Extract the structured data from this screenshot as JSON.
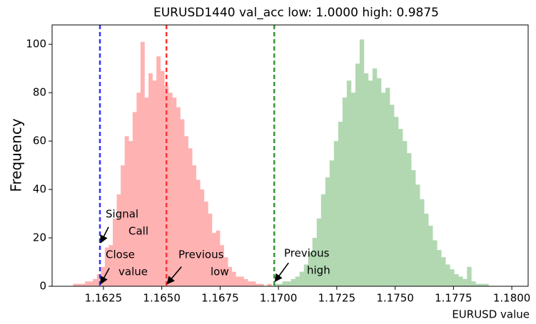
{
  "chart_data": {
    "type": "histogram",
    "title": "EURUSD1440 val_acc low: 1.0000 high: 0.9875",
    "x_label": "EURUSD value",
    "y_label": "Frequency",
    "xlim": [
      1.1603,
      1.1807
    ],
    "ylim": [
      0,
      108
    ],
    "xticks": [
      1.1625,
      {
        "value": 1.165,
        "label": "1.1650"
      },
      1.1675,
      {
        "value": 1.17,
        "label": "1.1700"
      },
      1.1725,
      {
        "value": 1.175,
        "label": "1.1750"
      },
      1.1775,
      {
        "value": 1.18,
        "label": "1.1800"
      }
    ],
    "yticks": [
      0,
      20,
      40,
      60,
      80,
      100
    ],
    "grid": false,
    "series": [
      {
        "color": "#ffb2b2",
        "bins": [
          1.1612,
          1.16137,
          1.16154,
          1.16171,
          1.16188,
          1.16205,
          1.16222,
          1.16239,
          1.16256,
          1.16273,
          1.1629,
          1.16307,
          1.16324,
          1.16341,
          1.16358,
          1.16375,
          1.16392,
          1.16409,
          1.16426,
          1.16443,
          1.1646,
          1.16477,
          1.16494,
          1.16511,
          1.16528,
          1.16545,
          1.16562,
          1.16579,
          1.16596,
          1.16613,
          1.1663,
          1.16647,
          1.16664,
          1.16681,
          1.16698,
          1.16715,
          1.16732,
          1.16749,
          1.16766,
          1.16783,
          1.168,
          1.16817,
          1.16834,
          1.16851,
          1.16868,
          1.16885,
          1.16902,
          1.16919,
          1.16936,
          1.16953,
          1.1697
        ],
        "values": [
          1,
          1,
          1,
          2,
          2,
          3,
          5,
          8,
          16,
          17,
          28,
          38,
          50,
          62,
          60,
          72,
          80,
          101,
          78,
          88,
          85,
          95,
          89,
          83,
          80,
          78,
          74,
          69,
          62,
          57,
          50,
          44,
          40,
          35,
          30,
          22,
          23,
          17,
          12,
          8,
          6,
          4,
          4,
          3,
          2,
          2,
          1,
          1,
          0,
          1
        ]
      },
      {
        "color": "#b2d8b2",
        "bins": [
          1.1698,
          1.169984,
          1.170168,
          1.170352,
          1.170536,
          1.17072,
          1.170904,
          1.171088,
          1.171272,
          1.171456,
          1.17164,
          1.171824,
          1.172008,
          1.172192,
          1.172376,
          1.17256,
          1.172744,
          1.172928,
          1.173112,
          1.173296,
          1.17348,
          1.173664,
          1.173848,
          1.174032,
          1.174216,
          1.1744,
          1.174584,
          1.174768,
          1.174952,
          1.175136,
          1.17532,
          1.175504,
          1.175688,
          1.175872,
          1.176056,
          1.17624,
          1.176424,
          1.176608,
          1.176792,
          1.176976,
          1.17716,
          1.177344,
          1.177528,
          1.177712,
          1.177896,
          1.17808,
          1.178264,
          1.178448,
          1.178632,
          1.178816,
          1.179
        ],
        "values": [
          1,
          1,
          2,
          2,
          3,
          4,
          6,
          9,
          14,
          20,
          28,
          38,
          45,
          52,
          60,
          68,
          78,
          85,
          80,
          92,
          102,
          88,
          85,
          90,
          86,
          80,
          82,
          75,
          70,
          65,
          60,
          55,
          48,
          42,
          36,
          30,
          25,
          19,
          15,
          12,
          9,
          7,
          5,
          4,
          3,
          8,
          2,
          1,
          1,
          1
        ]
      }
    ],
    "vlines": [
      {
        "value": 1.16235,
        "color": "#3333ff"
      },
      {
        "value": 1.1652,
        "color": "#ff3333"
      },
      {
        "value": 1.16982,
        "color": "#339933"
      }
    ],
    "annotations": [
      {
        "lines": [
          "Signal",
          "Call"
        ],
        "xy": [
          1.16235,
          18
        ]
      },
      {
        "lines": [
          "Close",
          "value"
        ],
        "xy": [
          1.16235,
          1
        ]
      },
      {
        "lines": [
          "Previous",
          "low"
        ],
        "xy": [
          1.1652,
          1
        ]
      },
      {
        "lines": [
          "Previous",
          "high"
        ],
        "xy": [
          1.16982,
          2
        ]
      }
    ]
  }
}
